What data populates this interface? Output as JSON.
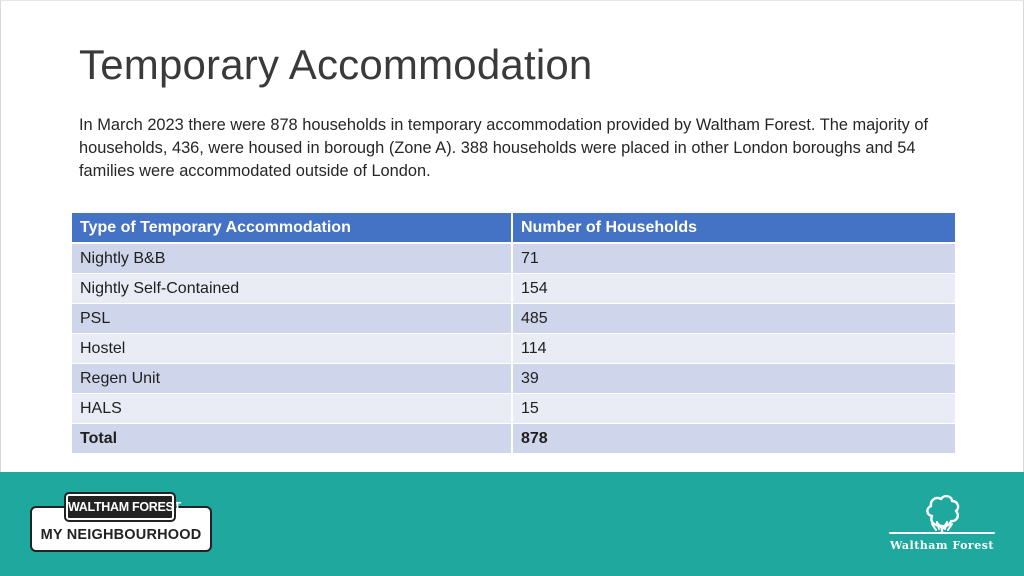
{
  "slide": {
    "title": "Temporary Accommodation",
    "intro": "In March 2023 there were 878 households in temporary accommodation provided by Waltham Forest. The majority of households, 436, were housed in borough (Zone A). 388 households were placed in other London boroughs and 54 families were accommodated outside of London."
  },
  "table": {
    "headers": [
      "Type of Temporary Accommodation",
      "Number of Households"
    ],
    "rows": [
      [
        "Nightly B&B",
        "71"
      ],
      [
        "Nightly Self-Contained",
        "154"
      ],
      [
        "PSL",
        "485"
      ],
      [
        "Hostel",
        "114"
      ],
      [
        "Regen Unit",
        "39"
      ],
      [
        "HALS",
        "15"
      ]
    ],
    "total": [
      "Total",
      "878"
    ]
  },
  "footer": {
    "my_neighbourhood_top": "WALTHAM FOREST",
    "my_neighbourhood_bottom": "MY NEIGHBOURHOOD",
    "council_name": "Waltham Forest",
    "council_icon": "tree-icon"
  },
  "colors": {
    "header_blue": "#4472c4",
    "row_dark": "#cfd5ea",
    "row_light": "#e9ebf5",
    "footer_teal": "#1fa99e"
  }
}
